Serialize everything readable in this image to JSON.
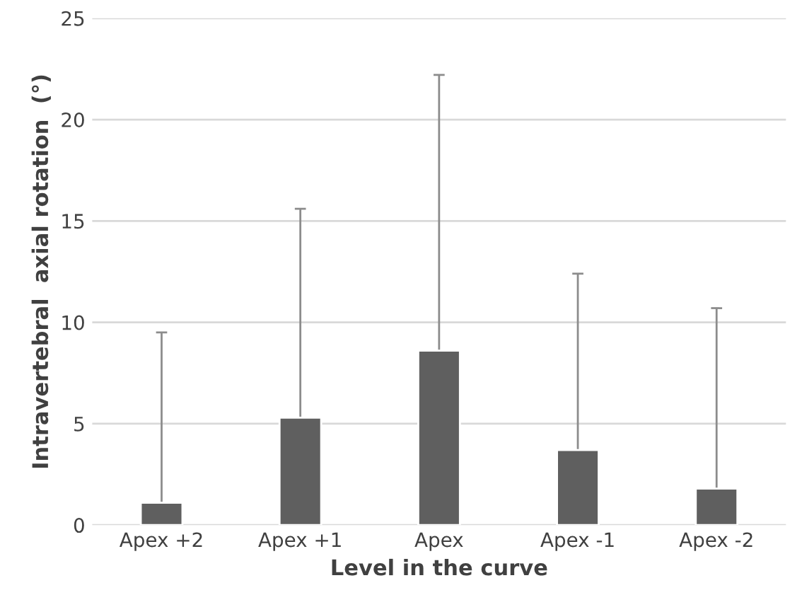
{
  "chart_data": {
    "type": "bar",
    "xlabel": "Level in the curve",
    "ylabel": "Intravertebral  axial rotation  (°)",
    "categories": [
      "Apex +2",
      "Apex +1",
      "Apex",
      "Apex -1",
      "Apex -2"
    ],
    "values": [
      1.1,
      5.3,
      8.6,
      3.7,
      1.8
    ],
    "errors": [
      [
        1.1,
        9.5
      ],
      [
        5.3,
        15.6
      ],
      [
        8.6,
        22.2
      ],
      [
        3.7,
        12.4
      ],
      [
        1.8,
        10.7
      ]
    ],
    "color": "#5f5f5f",
    "ylim": [
      0,
      25
    ],
    "yticks": [
      0,
      5,
      10,
      15,
      20,
      25
    ],
    "grid": "y",
    "legend": false
  }
}
